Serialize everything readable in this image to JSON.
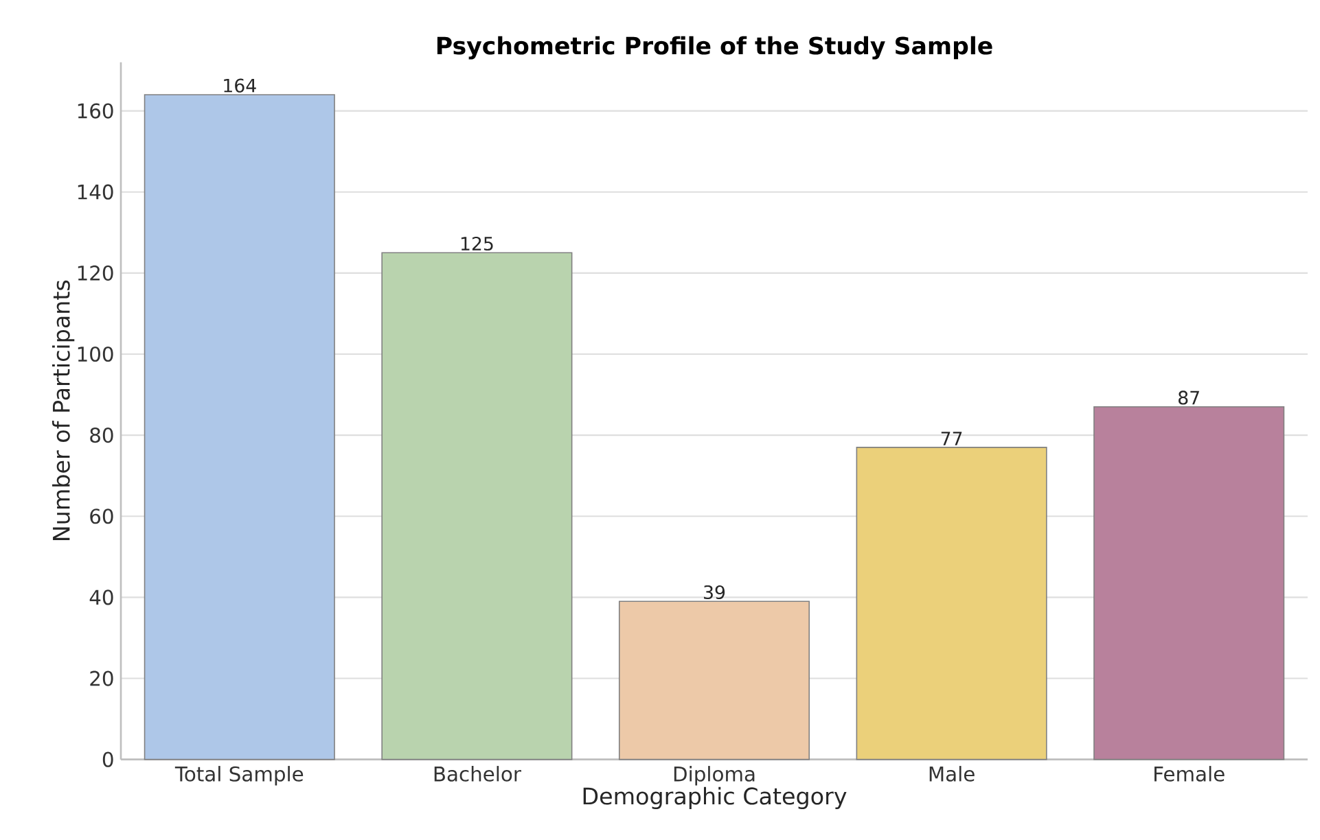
{
  "chart_data": {
    "type": "bar",
    "title": "Psychometric Profile of the Study Sample",
    "xlabel": "Demographic Category",
    "ylabel": "Number of Participants",
    "categories": [
      "Total Sample",
      "Bachelor",
      "Diploma",
      "Male",
      "Female"
    ],
    "values": [
      164,
      125,
      39,
      77,
      87
    ],
    "colors": [
      "#aec7e8",
      "#b9d3ae",
      "#edc9a8",
      "#ebd07a",
      "#b8819c"
    ],
    "ylim": [
      0,
      172
    ],
    "yticks": [
      0,
      20,
      40,
      60,
      80,
      100,
      120,
      140,
      160
    ],
    "grid": "y",
    "data_labels": true
  }
}
